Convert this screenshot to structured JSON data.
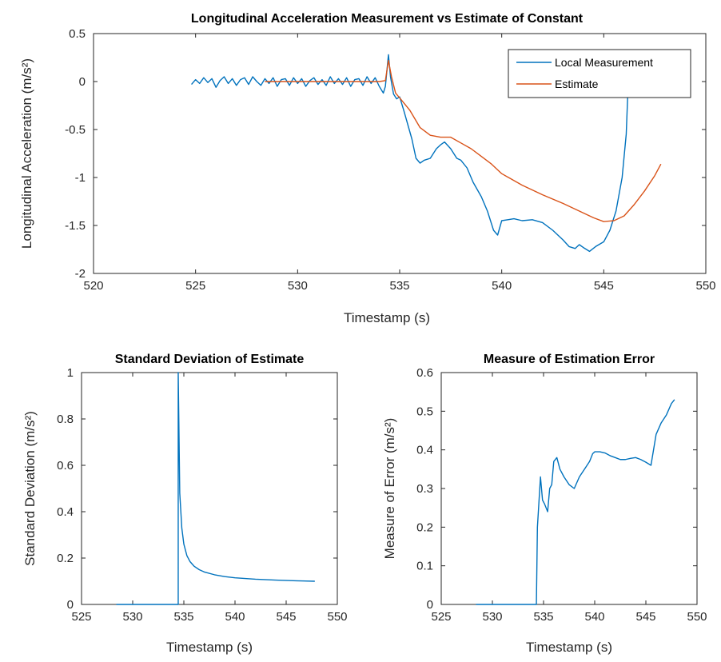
{
  "figure": {
    "background": "#ffffff",
    "colors": {
      "measurement": "#0072BD",
      "estimate": "#D95319",
      "axes": "#262626"
    }
  },
  "chart_data": [
    {
      "id": "accel",
      "type": "line",
      "title": "Longitudinal Acceleration Measurement vs Estimate of Constant",
      "xlabel": "Timestamp (s)",
      "ylabel": "Longitudinal Acceleration (m/s²)",
      "xlim": [
        520,
        550
      ],
      "ylim": [
        -2,
        0.5
      ],
      "xticks": [
        520,
        525,
        530,
        535,
        540,
        545,
        550
      ],
      "yticks": [
        -2,
        -1.5,
        -1,
        -0.5,
        0,
        0.5
      ],
      "xtick_labels": [
        "520",
        "525",
        "530",
        "535",
        "540",
        "545",
        "550"
      ],
      "ytick_labels": [
        "-2",
        "-1.5",
        "-1",
        "-0.5",
        "0",
        "0.5"
      ],
      "grid": false,
      "legend": {
        "placement": "top-right",
        "entries": [
          "Local Measurement",
          "Estimate"
        ]
      },
      "series": [
        {
          "name": "Local Measurement",
          "color": "#0072BD",
          "x": [
            524.8,
            525.0,
            525.2,
            525.4,
            525.6,
            525.8,
            526.0,
            526.2,
            526.4,
            526.6,
            526.8,
            527.0,
            527.2,
            527.4,
            527.6,
            527.8,
            528.0,
            528.2,
            528.4,
            528.6,
            528.8,
            529.0,
            529.2,
            529.4,
            529.6,
            529.8,
            530.0,
            530.2,
            530.4,
            530.6,
            530.8,
            531.0,
            531.2,
            531.4,
            531.6,
            531.8,
            532.0,
            532.2,
            532.4,
            532.6,
            532.8,
            533.0,
            533.2,
            533.4,
            533.6,
            533.8,
            534.0,
            534.2,
            534.3,
            534.45,
            534.55,
            534.7,
            534.85,
            535.0,
            535.2,
            535.4,
            535.6,
            535.8,
            536.0,
            536.2,
            536.5,
            536.8,
            537.0,
            537.2,
            537.5,
            537.8,
            538.0,
            538.3,
            538.6,
            539.0,
            539.3,
            539.6,
            539.8,
            540.0,
            540.3,
            540.6,
            541.0,
            541.5,
            542.0,
            542.5,
            543.0,
            543.3,
            543.6,
            543.8,
            544.0,
            544.3,
            544.6,
            545.0,
            545.3,
            545.6,
            545.9,
            546.1,
            546.2
          ],
          "y": [
            -0.03,
            0.02,
            -0.02,
            0.04,
            -0.01,
            0.03,
            -0.06,
            0.01,
            0.05,
            -0.02,
            0.03,
            -0.04,
            0.02,
            0.04,
            -0.03,
            0.05,
            0.0,
            -0.04,
            0.03,
            -0.02,
            0.04,
            -0.05,
            0.02,
            0.03,
            -0.04,
            0.04,
            -0.02,
            0.03,
            -0.05,
            0.01,
            0.04,
            -0.03,
            0.02,
            -0.04,
            0.05,
            -0.02,
            0.03,
            -0.03,
            0.04,
            -0.05,
            0.02,
            0.03,
            -0.04,
            0.05,
            -0.02,
            0.04,
            -0.05,
            -0.12,
            -0.05,
            0.28,
            0.05,
            -0.13,
            -0.18,
            -0.16,
            -0.3,
            -0.45,
            -0.6,
            -0.8,
            -0.85,
            -0.82,
            -0.8,
            -0.7,
            -0.66,
            -0.63,
            -0.7,
            -0.8,
            -0.82,
            -0.9,
            -1.05,
            -1.2,
            -1.35,
            -1.55,
            -1.6,
            -1.45,
            -1.44,
            -1.43,
            -1.45,
            -1.44,
            -1.47,
            -1.55,
            -1.65,
            -1.72,
            -1.74,
            -1.7,
            -1.73,
            -1.77,
            -1.72,
            -1.67,
            -1.55,
            -1.35,
            -1.0,
            -0.55,
            0.0
          ]
        },
        {
          "name": "Estimate",
          "color": "#D95319",
          "x": [
            528.4,
            529.0,
            530.0,
            531.0,
            532.0,
            533.0,
            534.0,
            534.3,
            534.45,
            534.6,
            534.8,
            535.0,
            535.5,
            536.0,
            536.5,
            537.0,
            537.5,
            538.0,
            538.5,
            539.0,
            539.5,
            540.0,
            541.0,
            542.0,
            543.0,
            544.0,
            544.5,
            545.0,
            545.5,
            546.0,
            546.5,
            547.0,
            547.5,
            547.8
          ],
          "y": [
            0.0,
            0.0,
            0.0,
            0.0,
            0.0,
            0.0,
            0.0,
            0.01,
            0.22,
            0.05,
            -0.12,
            -0.17,
            -0.3,
            -0.48,
            -0.56,
            -0.58,
            -0.58,
            -0.64,
            -0.7,
            -0.78,
            -0.86,
            -0.96,
            -1.08,
            -1.18,
            -1.27,
            -1.37,
            -1.42,
            -1.46,
            -1.45,
            -1.4,
            -1.28,
            -1.14,
            -0.98,
            -0.86
          ]
        }
      ]
    },
    {
      "id": "stddev",
      "type": "line",
      "title": "Standard Deviation of Estimate",
      "xlabel": "Timestamp (s)",
      "ylabel": "Standard Deviation (m/s²)",
      "xlim": [
        525,
        550
      ],
      "ylim": [
        0,
        1
      ],
      "xticks": [
        525,
        530,
        535,
        540,
        545,
        550
      ],
      "yticks": [
        0,
        0.2,
        0.4,
        0.6,
        0.8,
        1
      ],
      "xtick_labels": [
        "525",
        "530",
        "535",
        "540",
        "545",
        "550"
      ],
      "ytick_labels": [
        "0",
        "0.2",
        "0.4",
        "0.6",
        "0.8",
        "1"
      ],
      "grid": false,
      "series": [
        {
          "color": "#0072BD",
          "x": [
            528.4,
            534.45,
            534.45,
            534.6,
            534.8,
            535.0,
            535.3,
            535.6,
            536.0,
            536.5,
            537.0,
            538.0,
            539.0,
            540.0,
            542.0,
            544.0,
            546.0,
            547.8
          ],
          "y": [
            0.0,
            0.0,
            1.0,
            0.48,
            0.33,
            0.26,
            0.21,
            0.185,
            0.165,
            0.15,
            0.14,
            0.128,
            0.12,
            0.115,
            0.109,
            0.105,
            0.102,
            0.1
          ]
        }
      ]
    },
    {
      "id": "error",
      "type": "line",
      "title": "Measure of Estimation Error",
      "xlabel": "Timestamp (s)",
      "ylabel": "Measure of Error (m/s²)",
      "xlim": [
        525,
        550
      ],
      "ylim": [
        0,
        0.6
      ],
      "xticks": [
        525,
        530,
        535,
        540,
        545,
        550
      ],
      "yticks": [
        0,
        0.1,
        0.2,
        0.3,
        0.4,
        0.5,
        0.6
      ],
      "xtick_labels": [
        "525",
        "530",
        "535",
        "540",
        "545",
        "550"
      ],
      "ytick_labels": [
        "0",
        "0.1",
        "0.2",
        "0.3",
        "0.4",
        "0.5",
        "0.6"
      ],
      "grid": false,
      "series": [
        {
          "color": "#0072BD",
          "x": [
            528.4,
            534.3,
            534.4,
            534.7,
            534.9,
            535.1,
            535.4,
            535.6,
            535.8,
            536.0,
            536.3,
            536.6,
            537.0,
            537.5,
            538.0,
            538.5,
            539.0,
            539.5,
            539.8,
            540.0,
            540.5,
            541.0,
            541.5,
            542.0,
            542.5,
            543.0,
            543.5,
            544.0,
            544.5,
            545.0,
            545.5,
            546.0,
            546.5,
            547.0,
            547.5,
            547.8
          ],
          "y": [
            0.0,
            0.0,
            0.2,
            0.33,
            0.27,
            0.26,
            0.24,
            0.3,
            0.31,
            0.37,
            0.38,
            0.35,
            0.33,
            0.31,
            0.3,
            0.33,
            0.35,
            0.37,
            0.39,
            0.395,
            0.395,
            0.392,
            0.385,
            0.38,
            0.375,
            0.375,
            0.378,
            0.38,
            0.375,
            0.368,
            0.36,
            0.44,
            0.47,
            0.49,
            0.52,
            0.53
          ]
        }
      ]
    }
  ]
}
